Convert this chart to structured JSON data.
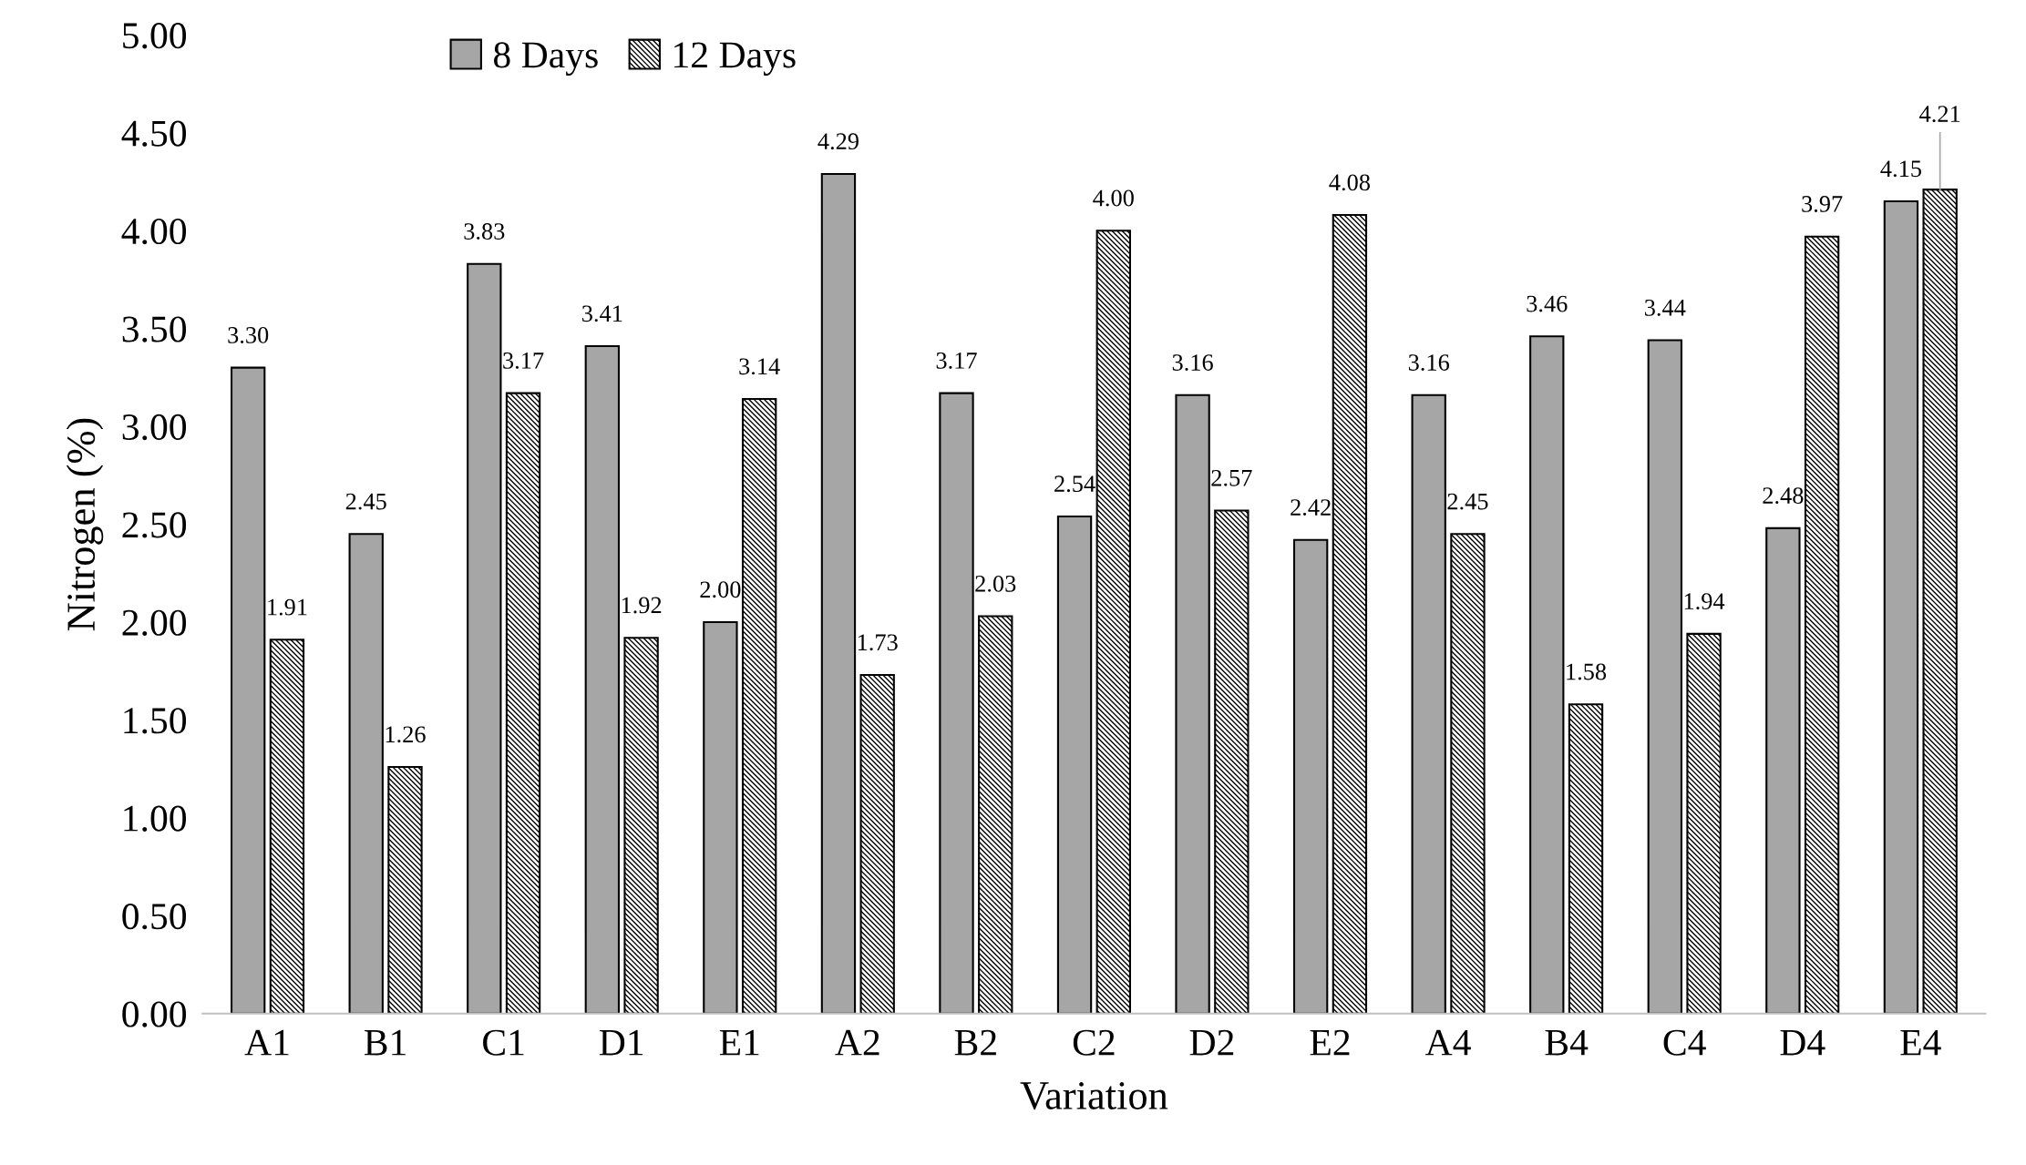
{
  "chart_data": {
    "type": "bar",
    "xlabel": "Variation",
    "ylabel": "Nitrogen (%)",
    "categories": [
      "A1",
      "B1",
      "C1",
      "D1",
      "E1",
      "A2",
      "B2",
      "C2",
      "D2",
      "E2",
      "A4",
      "B4",
      "C4",
      "D4",
      "E4"
    ],
    "series": [
      {
        "name": "8 Days",
        "color": "#a6a6a6",
        "values": [
          3.3,
          2.45,
          3.83,
          3.41,
          2.0,
          4.29,
          3.17,
          2.54,
          3.16,
          2.42,
          3.16,
          3.46,
          3.44,
          2.48,
          4.15
        ],
        "value_labels": [
          "3.30",
          "2.45",
          "3.83",
          "3.41",
          "2.00",
          "4.29",
          "3.17",
          "2.54",
          "3.16",
          "2.42",
          "3.16",
          "3.46",
          "3.44",
          "2.48",
          "4.15"
        ]
      },
      {
        "name": "12 Days",
        "color": "#000000",
        "values": [
          1.91,
          1.26,
          3.17,
          1.92,
          3.14,
          1.73,
          2.03,
          4.0,
          2.57,
          4.08,
          2.45,
          1.58,
          1.94,
          3.97,
          4.21
        ],
        "value_labels": [
          "1.91",
          "1.26",
          "3.17",
          "1.92",
          "3.14",
          "1.73",
          "2.03",
          "4.00",
          "2.57",
          "4.08",
          "2.45",
          "1.58",
          "1.94",
          "3.97",
          "4.21"
        ]
      }
    ],
    "ylim": [
      0,
      5
    ],
    "yticks": [
      {
        "value": 0,
        "label": "0.00"
      },
      {
        "value": 0.5,
        "label": "0.50"
      },
      {
        "value": 1,
        "label": "1.00"
      },
      {
        "value": 1.5,
        "label": "1.50"
      },
      {
        "value": 2,
        "label": "2.00"
      },
      {
        "value": 2.5,
        "label": "2.50"
      },
      {
        "value": 3,
        "label": "3.00"
      },
      {
        "value": 3.5,
        "label": "3.50"
      },
      {
        "value": 4,
        "label": "4.00"
      },
      {
        "value": 4.5,
        "label": "4.50"
      },
      {
        "value": 5,
        "label": "5.00"
      }
    ],
    "grid": false,
    "legend": "top left"
  }
}
